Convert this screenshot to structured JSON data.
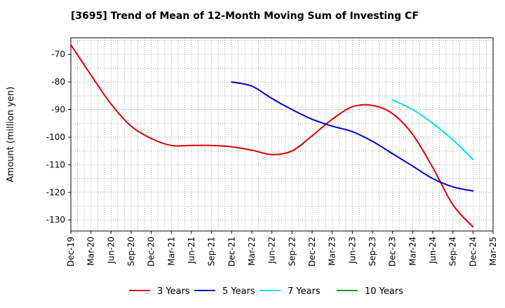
{
  "chart_data": {
    "type": "line",
    "title": "[3695]  Trend of Mean of 12-Month Moving Sum of Investing CF",
    "xlabel": "",
    "ylabel": "Amount (million yen)",
    "ylim": [
      -134,
      -64
    ],
    "yticks": [
      -70,
      -80,
      -90,
      -100,
      -110,
      -120,
      -130
    ],
    "x_tick_labels": [
      "Dec-19",
      "Mar-20",
      "Jun-20",
      "Sep-20",
      "Dec-20",
      "Mar-21",
      "Jun-21",
      "Sep-21",
      "Dec-21",
      "Mar-22",
      "Jun-22",
      "Sep-22",
      "Dec-22",
      "Mar-23",
      "Jun-23",
      "Sep-23",
      "Dec-23",
      "Mar-24",
      "Jun-24",
      "Sep-24",
      "Dec-24",
      "Mar-25"
    ],
    "grid": true,
    "legend_position": "bottom",
    "series": [
      {
        "name": "3 Years",
        "color": "#dd0000",
        "points": [
          [
            0,
            -66.5
          ],
          [
            1,
            -77.5
          ],
          [
            2,
            -88
          ],
          [
            3,
            -96
          ],
          [
            4,
            -100.5
          ],
          [
            5,
            -103
          ],
          [
            6,
            -103
          ],
          [
            7,
            -103
          ],
          [
            8,
            -103.5
          ],
          [
            9,
            -104.7
          ],
          [
            10,
            -106.3
          ],
          [
            11,
            -105
          ],
          [
            12,
            -99.5
          ],
          [
            13,
            -93.5
          ],
          [
            14,
            -89
          ],
          [
            15,
            -88.5
          ],
          [
            16,
            -91.5
          ],
          [
            17,
            -99
          ],
          [
            18,
            -111
          ],
          [
            19,
            -124.5
          ],
          [
            20,
            -132.5
          ]
        ]
      },
      {
        "name": "5 Years",
        "color": "#0000cc",
        "points": [
          [
            8,
            -80
          ],
          [
            9,
            -81.5
          ],
          [
            10,
            -86
          ],
          [
            11,
            -90
          ],
          [
            12,
            -93.5
          ],
          [
            13,
            -96
          ],
          [
            14,
            -98
          ],
          [
            15,
            -101.5
          ],
          [
            16,
            -106
          ],
          [
            17,
            -110.5
          ],
          [
            18,
            -115
          ],
          [
            19,
            -118
          ],
          [
            20,
            -119.5
          ]
        ]
      },
      {
        "name": "7 Years",
        "color": "#00e5e5",
        "points": [
          [
            16,
            -86.5
          ],
          [
            17,
            -90
          ],
          [
            18,
            -95
          ],
          [
            19,
            -101
          ],
          [
            20,
            -108
          ]
        ]
      },
      {
        "name": "10 Years",
        "color": "#228b22",
        "points": []
      }
    ]
  }
}
